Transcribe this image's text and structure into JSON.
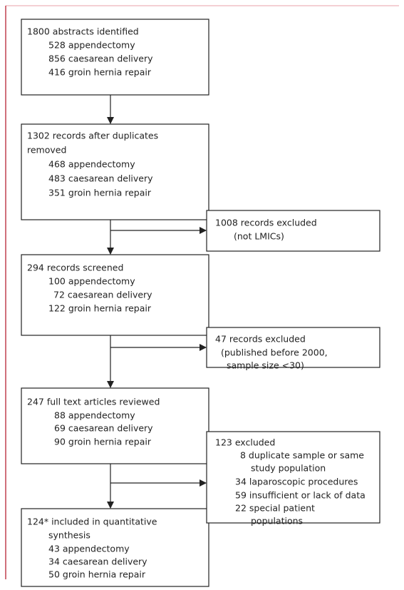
{
  "boxes": [
    {
      "lines": [
        "1800 abstracts identified",
        "528 appendectomy",
        "856 caesarean delivery",
        "416 groin hernia repair"
      ]
    },
    {
      "lines": [
        "1302 records after duplicates",
        "removed",
        "468 appendectomy",
        "483 caesarean delivery",
        "351 groin hernia repair"
      ]
    },
    {
      "lines": [
        "294 records screened",
        "100 appendectomy",
        "72 caesarean delivery",
        "122 groin hernia repair"
      ]
    },
    {
      "lines": [
        "247 full text articles reviewed",
        "88 appendectomy",
        "69 caesarean delivery",
        "90 groin hernia repair"
      ]
    },
    {
      "lines": [
        "124* included in quantitative",
        "synthesis",
        "43 appendectomy",
        "34 caesarean delivery",
        "50 groin hernia repair"
      ]
    }
  ],
  "excluded": [
    {
      "lines": [
        "1008 records excluded",
        "(not LMICs)"
      ]
    },
    {
      "lines": [
        "47 records excluded",
        "(published before 2000,",
        "sample size <30)"
      ]
    },
    {
      "lines": [
        "123 excluded",
        "8 duplicate sample or same",
        "study population",
        "34 laparoscopic procedures",
        "59 insufficient or lack of data",
        "22 special patient",
        "populations"
      ]
    }
  ]
}
